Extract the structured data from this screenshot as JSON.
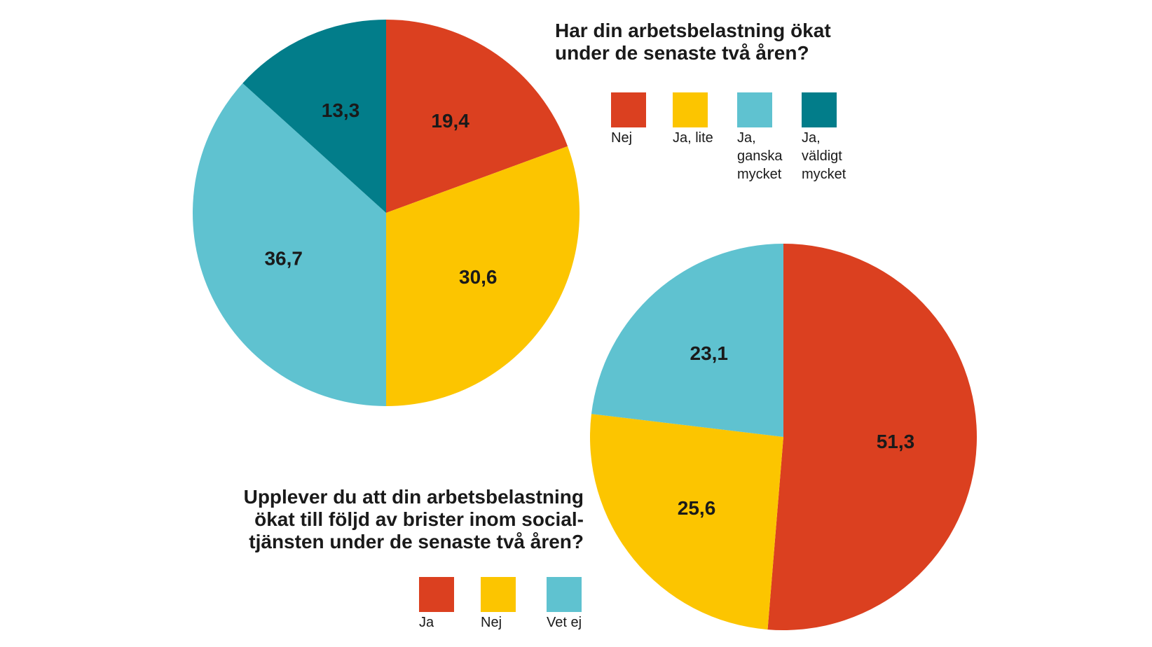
{
  "colors": {
    "red": "#db4020",
    "yellow": "#fcc500",
    "light_blue": "#5fc2d0",
    "dark_teal": "#027d8a"
  },
  "chart_data": [
    {
      "type": "pie",
      "title_lines": [
        "Har din arbetsbelastning ökat",
        "under de senaste två åren?"
      ],
      "legend": [
        {
          "label_lines": [
            "Nej"
          ],
          "color": "#db4020"
        },
        {
          "label_lines": [
            "Ja, lite"
          ],
          "color": "#fcc500"
        },
        {
          "label_lines": [
            "Ja,",
            "ganska",
            "mycket"
          ],
          "color": "#5fc2d0"
        },
        {
          "label_lines": [
            "Ja,",
            "väldigt",
            "mycket"
          ],
          "color": "#027d8a"
        }
      ],
      "slices": [
        {
          "category": "Nej",
          "value": 19.4,
          "label": "19,4",
          "color": "#db4020"
        },
        {
          "category": "Ja, lite",
          "value": 30.6,
          "label": "30,6",
          "color": "#fcc500"
        },
        {
          "category": "Ja, ganska mycket",
          "value": 36.7,
          "label": "36,7",
          "color": "#5fc2d0"
        },
        {
          "category": "Ja, väldigt mycket",
          "value": 13.3,
          "label": "13,3",
          "color": "#027d8a"
        }
      ]
    },
    {
      "type": "pie",
      "title_lines": [
        "Upplever du att din arbetsbelastning",
        "ökat till följd av brister inom social-",
        "tjänsten under de senaste två åren?"
      ],
      "legend": [
        {
          "label_lines": [
            "Ja"
          ],
          "color": "#db4020"
        },
        {
          "label_lines": [
            "Nej"
          ],
          "color": "#fcc500"
        },
        {
          "label_lines": [
            "Vet ej"
          ],
          "color": "#5fc2d0"
        }
      ],
      "slices": [
        {
          "category": "Ja",
          "value": 51.3,
          "label": "51,3",
          "color": "#db4020"
        },
        {
          "category": "Nej",
          "value": 25.6,
          "label": "25,6",
          "color": "#fcc500"
        },
        {
          "category": "Vet ej",
          "value": 23.1,
          "label": "23,1",
          "color": "#5fc2d0"
        }
      ]
    }
  ]
}
